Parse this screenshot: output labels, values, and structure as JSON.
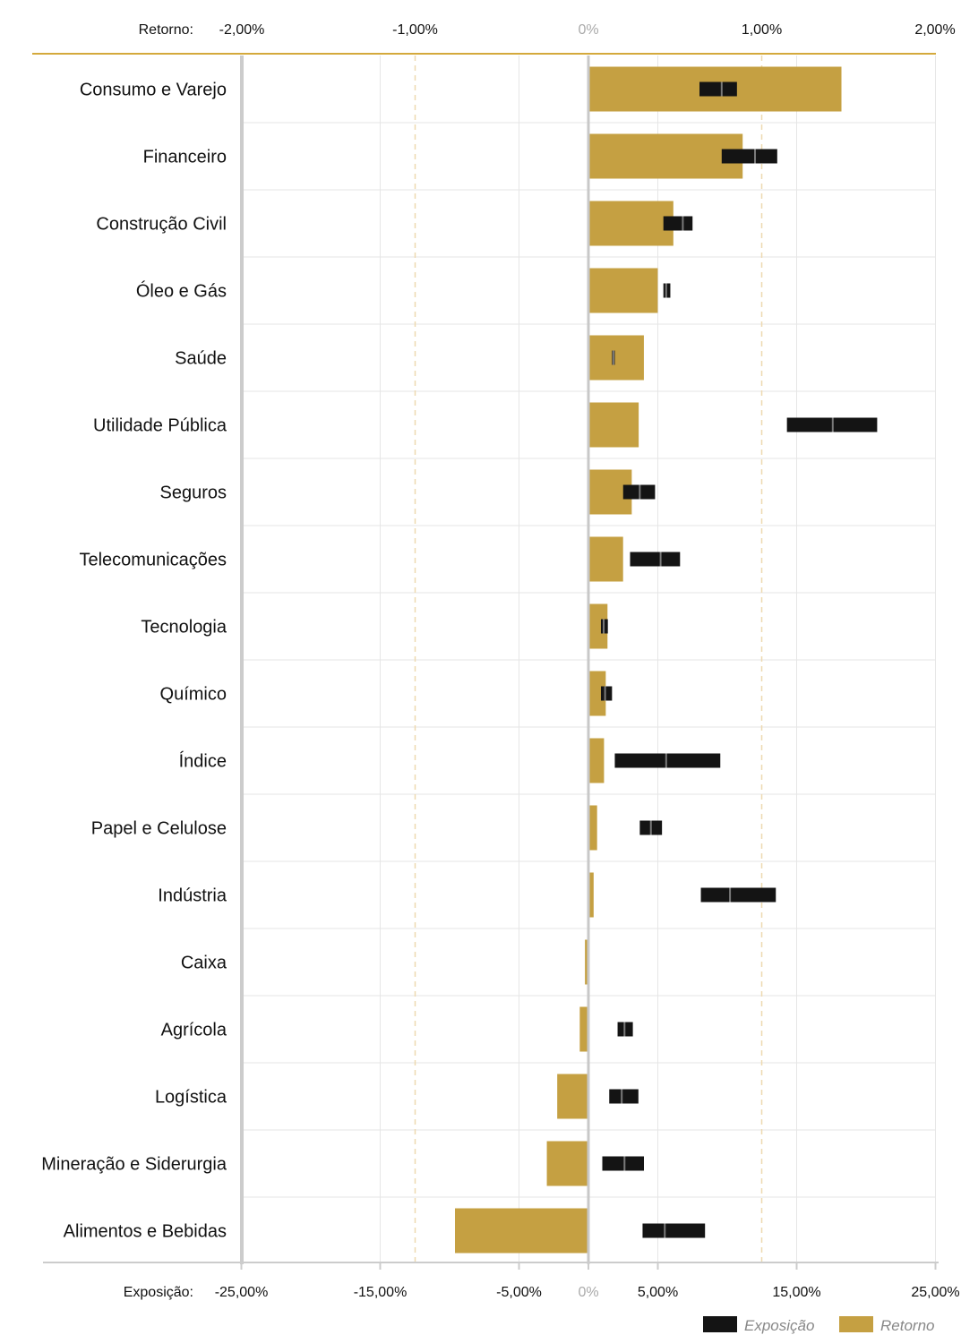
{
  "chart_data": {
    "type": "bar",
    "top_axis": {
      "label": "Retorno:",
      "range": [
        -2.0,
        2.0
      ],
      "ticks": [
        {
          "value": -2.0,
          "label": "-2,00%"
        },
        {
          "value": -1.0,
          "label": "-1,00%"
        },
        {
          "value": 0,
          "label": "0%"
        },
        {
          "value": 1.0,
          "label": "1,00%"
        },
        {
          "value": 2.0,
          "label": "2,00%"
        }
      ]
    },
    "bottom_axis": {
      "label": "Exposição:",
      "range": [
        -25.0,
        25.0
      ],
      "ticks": [
        {
          "value": -25.0,
          "label": "-25,00%"
        },
        {
          "value": -15.0,
          "label": "-15,00%"
        },
        {
          "value": -5.0,
          "label": "-5,00%"
        },
        {
          "value": 0,
          "label": "0%"
        },
        {
          "value": 5.0,
          "label": "5,00%"
        },
        {
          "value": 15.0,
          "label": "15,00%"
        },
        {
          "value": 25.0,
          "label": "25,00%"
        }
      ]
    },
    "categories": [
      "Consumo e Varejo",
      "Financeiro",
      "Construção Civil",
      "Óleo e Gás",
      "Saúde",
      "Utilidade Pública",
      "Seguros",
      "Telecomunicações",
      "Tecnologia",
      "Químico",
      "Índice",
      "Papel e Celulose",
      "Indústria",
      "Caixa",
      "Agrícola",
      "Logística",
      "Mineração e Siderurgia",
      "Alimentos e Bebidas"
    ],
    "series": [
      {
        "name": "Retorno",
        "unit": "%",
        "values": [
          1.46,
          0.89,
          0.49,
          0.4,
          0.32,
          0.29,
          0.25,
          0.2,
          0.11,
          0.1,
          0.09,
          0.05,
          0.03,
          -0.02,
          -0.05,
          -0.18,
          -0.24,
          -0.77
        ]
      },
      {
        "name": "Exposição",
        "unit": "%",
        "ranges": [
          [
            8.0,
            10.7
          ],
          [
            9.6,
            13.6
          ],
          [
            5.4,
            7.5
          ],
          [
            5.4,
            5.9
          ],
          [
            1.7,
            1.9
          ],
          [
            14.3,
            20.8
          ],
          [
            2.5,
            4.8
          ],
          [
            3.0,
            6.6
          ],
          [
            0.9,
            1.4
          ],
          [
            0.9,
            1.7
          ],
          [
            1.9,
            9.5
          ],
          [
            3.7,
            5.3
          ],
          [
            8.1,
            13.5
          ],
          null,
          [
            2.1,
            3.2
          ],
          [
            1.5,
            3.6
          ],
          [
            1.0,
            4.0
          ],
          [
            3.9,
            8.4
          ]
        ],
        "markers": [
          9.6,
          12.0,
          6.8,
          5.6,
          1.8,
          17.6,
          3.7,
          5.2,
          1.1,
          1.2,
          5.6,
          4.5,
          10.2,
          null,
          2.6,
          2.4,
          2.6,
          5.5
        ]
      }
    ],
    "gridlines": "dashed at -1,00% and 1,00% (top axis)",
    "legend": {
      "position": "bottom-right",
      "items": [
        "Exposição",
        "Retorno"
      ]
    },
    "colors": {
      "retorno": "#c5a042",
      "exposicao": "#141414",
      "marker": "#7a7a7a",
      "top_rule": "#d4a93c",
      "axis": "#cccccc",
      "grid": "#e6e6e6",
      "dashed": "#eed9b0",
      "zero_tick": "#aaaaaa"
    }
  }
}
